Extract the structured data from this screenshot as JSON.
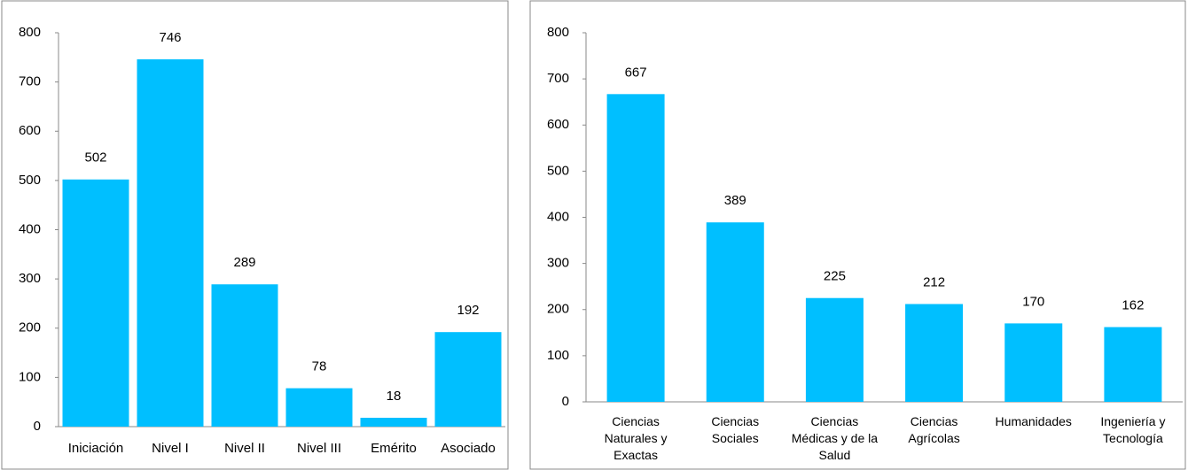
{
  "chart_data": [
    {
      "type": "bar",
      "categories": [
        "Iniciación",
        "Nivel I",
        "Nivel II",
        "Nivel III",
        "Emérito",
        "Asociado"
      ],
      "values": [
        502,
        746,
        289,
        78,
        18,
        192
      ],
      "color": "#00bfff",
      "ylim": [
        0,
        800
      ],
      "yticks": [
        0,
        100,
        200,
        300,
        400,
        500,
        600,
        700,
        800
      ]
    },
    {
      "type": "bar",
      "categories": [
        "Ciencias Naturales y Exactas",
        "Ciencias Sociales",
        "Ciencias Médicas y de la Salud",
        "Ciencias Agrícolas",
        "Humanidades",
        "Ingeniería y Tecnología"
      ],
      "values": [
        667,
        389,
        225,
        212,
        170,
        162
      ],
      "color": "#00bfff",
      "ylim": [
        0,
        800
      ],
      "yticks": [
        0,
        100,
        200,
        300,
        400,
        500,
        600,
        700,
        800
      ]
    }
  ]
}
